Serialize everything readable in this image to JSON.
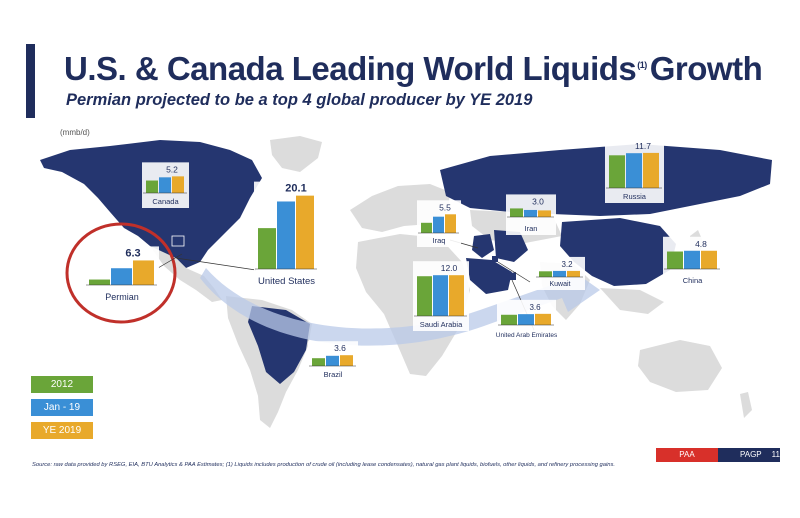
{
  "header": {
    "title": "U.S. & Canada Leading World Liquids",
    "title_sup": "(1)",
    "title_suffix": "Growth",
    "subtitle": "Permian projected to be a top 4 global producer by YE 2019",
    "units": "(mmb/d)"
  },
  "legend": {
    "items": [
      {
        "label": "2012",
        "color": "#6aa539"
      },
      {
        "label": "Jan - 19",
        "color": "#3a8fd6"
      },
      {
        "label": "YE 2019",
        "color": "#e8a92b"
      }
    ]
  },
  "colors": {
    "highlight_land": "#253670",
    "other_land": "#dcdcdc",
    "accent": "#1f2d5c",
    "arrow": "#b9c9e8",
    "permian_circle": "#c0302a"
  },
  "chart_data": {
    "type": "bar",
    "title": "U.S. & Canada Leading World Liquids Growth",
    "units": "(mmb/d)",
    "series_names": [
      "2012",
      "Jan - 19",
      "YE 2019"
    ],
    "countries": [
      {
        "name": "Canada",
        "label": "5.2",
        "values": [
          3.9,
          4.9,
          5.2
        ]
      },
      {
        "name": "United States",
        "label": "20.1",
        "values": [
          11.2,
          18.5,
          20.1
        ]
      },
      {
        "name": "Permian",
        "label": "6.3",
        "values": [
          1.4,
          4.3,
          6.3
        ]
      },
      {
        "name": "Russia",
        "label": "11.7",
        "values": [
          10.9,
          11.6,
          11.7
        ]
      },
      {
        "name": "Iraq",
        "label": "5.5",
        "values": [
          3.0,
          4.8,
          5.5
        ]
      },
      {
        "name": "Iran",
        "label": "3.0",
        "values": [
          3.9,
          3.2,
          3.0
        ]
      },
      {
        "name": "Saudi Arabia",
        "label": "12.0",
        "values": [
          11.7,
          12.0,
          12.0
        ]
      },
      {
        "name": "Kuwait",
        "label": "3.2",
        "values": [
          3.0,
          3.2,
          3.2
        ]
      },
      {
        "name": "United Arab Emirates",
        "label": "3.6",
        "values": [
          3.3,
          3.5,
          3.6
        ]
      },
      {
        "name": "China",
        "label": "4.8",
        "values": [
          4.6,
          4.8,
          4.8
        ]
      },
      {
        "name": "Brazil",
        "label": "3.6",
        "values": [
          2.6,
          3.4,
          3.6
        ]
      }
    ]
  },
  "footnote": "Source: raw data provided by RSEG, EIA, BTU Analytics & PAA Estimates; (1) Liquids includes production of crude oil (including lease condensates), natural gas plant liquids, biofuels, other liquids, and refinery processing gains.",
  "footer": {
    "paa": "PAA",
    "pagp": "PAGP",
    "page": "11"
  }
}
